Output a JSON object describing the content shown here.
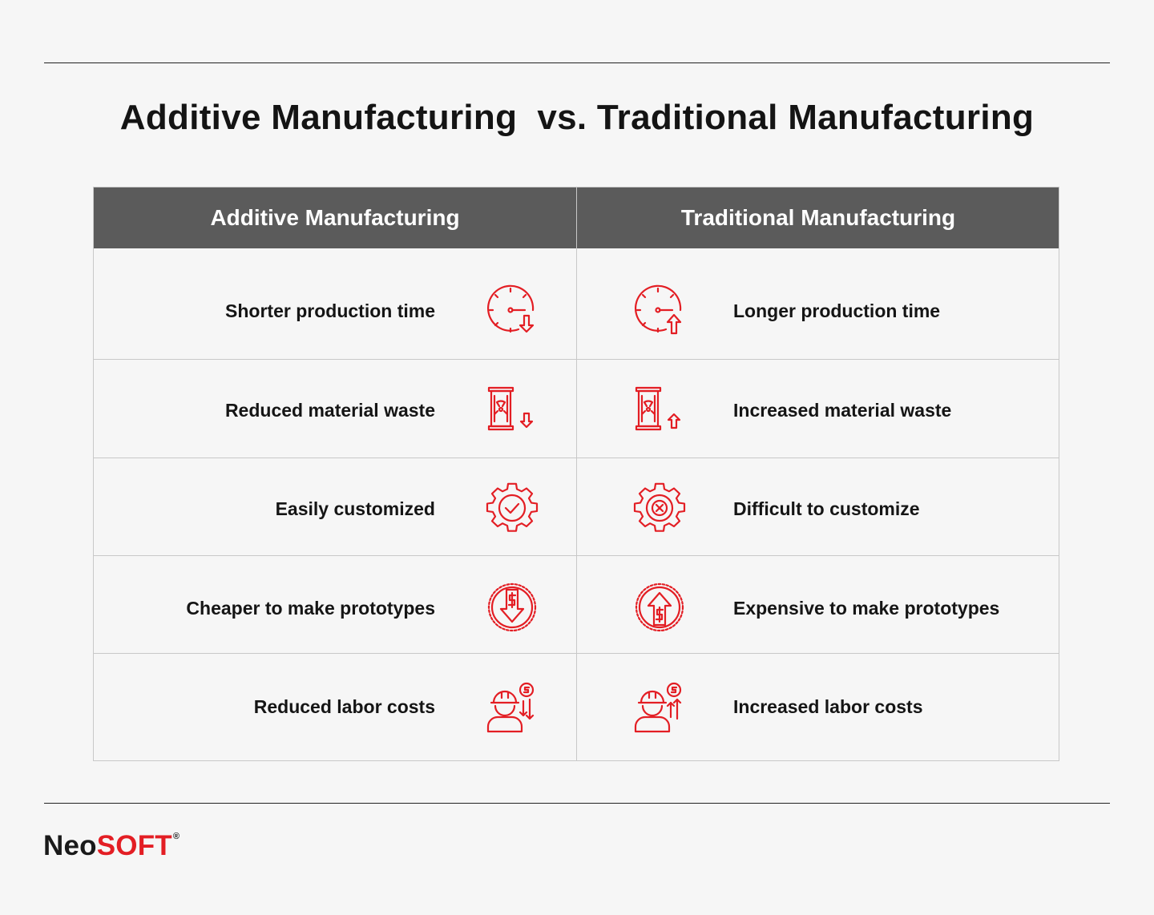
{
  "title": "Additive Manufacturing  vs. Traditional Manufacturing",
  "table": {
    "headers": [
      "Additive Manufacturing",
      "Traditional Manufacturing"
    ],
    "rows": [
      {
        "left": "Shorter production time",
        "left_icon": "clock-arrow-down-icon",
        "right": "Longer production time",
        "right_icon": "clock-arrow-up-icon"
      },
      {
        "left": "Reduced material waste",
        "left_icon": "waste-barrel-arrow-down-icon",
        "right": "Increased material waste",
        "right_icon": "waste-barrel-arrow-up-icon"
      },
      {
        "left": "Easily customized",
        "left_icon": "gear-check-icon",
        "right": "Difficult to customize",
        "right_icon": "gear-x-icon"
      },
      {
        "left": "Cheaper to make prototypes",
        "left_icon": "dollar-arrow-down-icon",
        "right": "Expensive to make prototypes",
        "right_icon": "dollar-arrow-up-icon"
      },
      {
        "left": "Reduced labor costs",
        "left_icon": "worker-cost-down-icon",
        "right": "Increased labor costs",
        "right_icon": "worker-cost-up-icon"
      }
    ]
  },
  "logo": {
    "part1": "Neo",
    "part2": "SOFT",
    "mark": "®"
  },
  "colors": {
    "accent": "#e31e24",
    "header_bg": "#5b5b5b",
    "background": "#f6f6f6",
    "text": "#151515"
  }
}
